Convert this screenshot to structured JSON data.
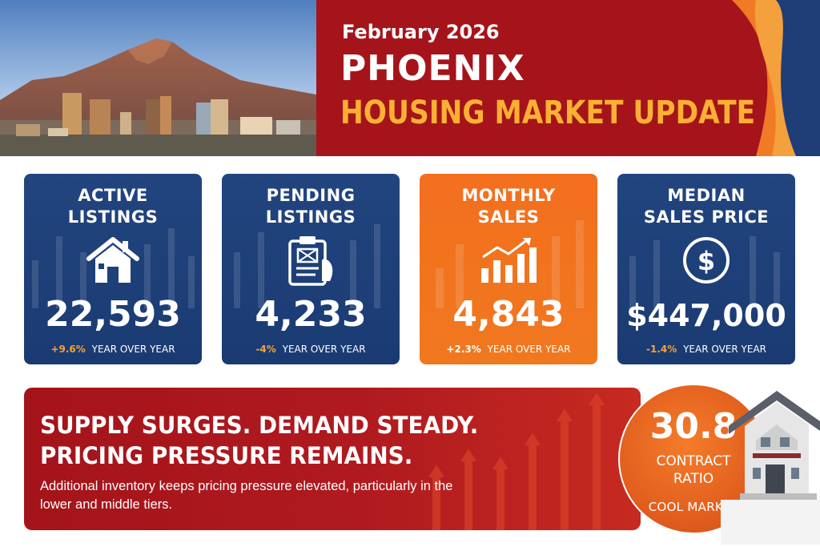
{
  "header": {
    "date": "February 2026",
    "city": "PHOENIX",
    "subtitle": "HOUSING MARKET UPDATE"
  },
  "cards": [
    {
      "title_line1": "ACTIVE",
      "title_line2": "LISTINGS",
      "icon": "house-icon",
      "value": "22,593",
      "change": "+9.6%",
      "change_label": "YEAR OVER YEAR"
    },
    {
      "title_line1": "PENDING",
      "title_line2": "LISTINGS",
      "icon": "clipboard-icon",
      "value": "4,233",
      "change": "-4%",
      "change_label": "YEAR OVER YEAR"
    },
    {
      "title_line1": "MONTHLY",
      "title_line2": "SALES",
      "icon": "bar-chart-icon",
      "value": "4,843",
      "change": "+2.3%",
      "change_label": "YEAR OVER YEAR"
    },
    {
      "title_line1": "MEDIAN",
      "title_line2": "SALES PRICE",
      "icon": "dollar-icon",
      "value": "$447,000",
      "change": "-1.4%",
      "change_label": "YEAR OVER YEAR"
    }
  ],
  "summary": {
    "headline1": "SUPPLY SURGES. DEMAND STEADY.",
    "headline2": "PRICING PRESSURE REMAINS.",
    "body": "Additional inventory keeps pricing pressure elevated, particularly in the lower and middle tiers."
  },
  "ratio": {
    "value": "30.8",
    "label_line1": "CONTRACT",
    "label_line2": "RATIO",
    "market": "COOL MARKET"
  },
  "colors": {
    "navy": "#1e4079",
    "orange": "#f36f1e",
    "red": "#a5141a",
    "gold": "#fbb034"
  }
}
